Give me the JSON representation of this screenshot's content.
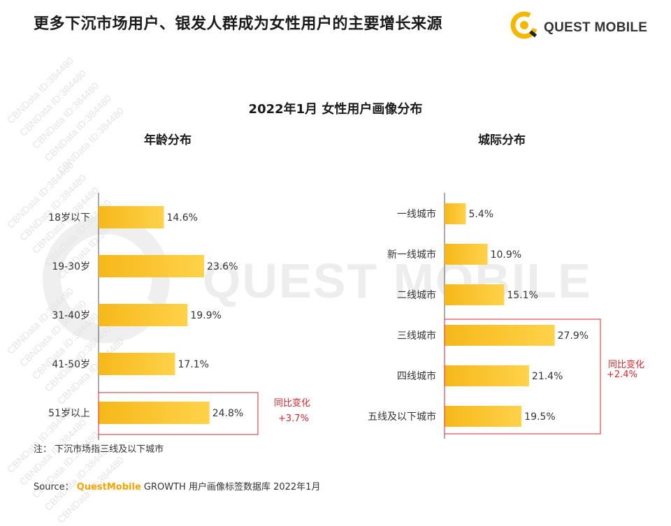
{
  "header": {
    "title": "更多下沉市场用户、银发人群成为女性用户的主要增长来源",
    "logo_text": "QUEST MOBILE"
  },
  "watermark": {
    "big_text": "QUEST MOBILE",
    "strip_text": "CBNData ID:384480"
  },
  "chart": {
    "main_title": "2022年1月 女性用户画像分布",
    "left_title": "年龄分布",
    "right_title": "城际分布",
    "left_yoy_label": "同比变化",
    "left_yoy_value": "+3.7%",
    "right_yoy_label": "同比变化",
    "right_yoy_value": "+2.4%"
  },
  "chart_data": [
    {
      "type": "bar",
      "orientation": "horizontal",
      "title": "年龄分布",
      "categories": [
        "18岁以下",
        "19-30岁",
        "31-40岁",
        "41-50岁",
        "51岁以上"
      ],
      "values": [
        14.6,
        23.6,
        19.9,
        17.1,
        24.8
      ],
      "value_labels": [
        "14.6%",
        "23.6%",
        "19.9%",
        "17.1%",
        "24.8%"
      ],
      "highlighted_categories": [
        "51岁以上"
      ],
      "unit": "%"
    },
    {
      "type": "bar",
      "orientation": "horizontal",
      "title": "城际分布",
      "categories": [
        "一线城市",
        "新一线城市",
        "二线城市",
        "三线城市",
        "四线城市",
        "五线及以下城市"
      ],
      "values": [
        5.4,
        10.9,
        15.1,
        27.9,
        21.4,
        19.5
      ],
      "value_labels": [
        "5.4%",
        "10.9%",
        "15.1%",
        "27.9%",
        "21.4%",
        "19.5%"
      ],
      "highlighted_categories": [
        "三线城市",
        "四线城市",
        "五线及以下城市"
      ],
      "unit": "%"
    }
  ],
  "colors": {
    "bar_start": "#f6b81a",
    "bar_end": "#ffd24a",
    "highlight_box": "#d9262c",
    "logo_yellow": "#f5b800"
  },
  "footer": {
    "note": "注：  下沉市场指三线及以下城市",
    "source_label": "Source：",
    "source_brand": "QuestMobile",
    "source_rest": " GROWTH 用户画像标签数据库 2022年1月"
  }
}
